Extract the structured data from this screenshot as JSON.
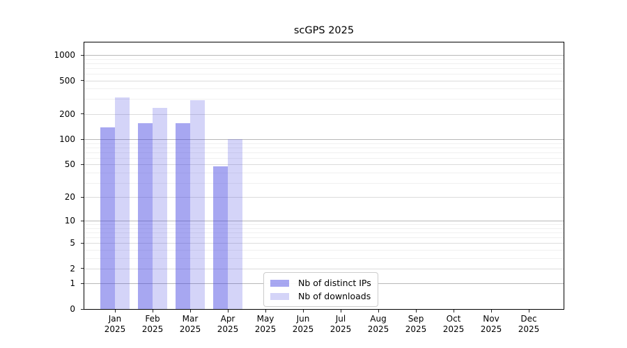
{
  "chart_data": {
    "type": "bar",
    "title": "scGPS 2025",
    "xlabel": "",
    "ylabel": "",
    "year": "2025",
    "categories": [
      "Jan",
      "Feb",
      "Mar",
      "Apr",
      "May",
      "Jun",
      "Jul",
      "Aug",
      "Sep",
      "Oct",
      "Nov",
      "Dec"
    ],
    "series": [
      {
        "name": "Nb of distinct IPs",
        "color": "rgba(60,60,225,0.45)",
        "values": [
          140,
          155,
          157,
          47,
          0,
          0,
          0,
          0,
          0,
          0,
          0,
          0
        ]
      },
      {
        "name": "Nb of downloads",
        "color": "rgba(60,60,225,0.22)",
        "values": [
          315,
          235,
          290,
          100,
          0,
          0,
          0,
          0,
          0,
          0,
          0,
          0
        ]
      }
    ],
    "yscale": "log10(1+x)",
    "yticks": [
      0,
      1,
      2,
      5,
      10,
      20,
      50,
      100,
      200,
      500,
      1000
    ],
    "ylim": [
      0,
      1400
    ],
    "grid": "on",
    "legend_position": "lower-center"
  },
  "colors": {
    "bar_ips": "rgba(60,60,225,0.45)",
    "bar_downloads": "rgba(60,60,225,0.22)",
    "grid_major": "#b8b8b8",
    "grid_mid": "#dcdcdc",
    "grid_minor": "#f0f0f0",
    "spine": "#000000",
    "legend_border": "#cccccc",
    "text": "#000000"
  }
}
